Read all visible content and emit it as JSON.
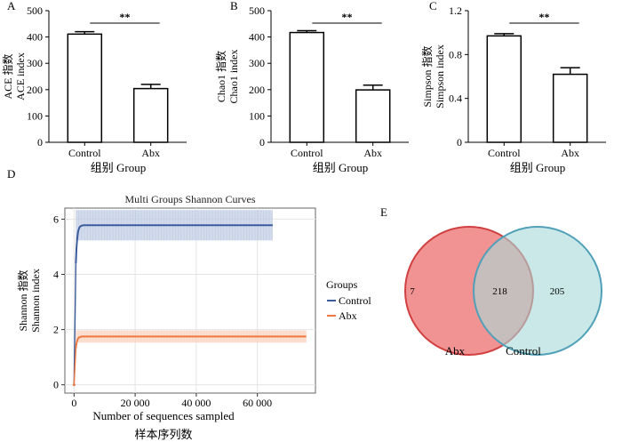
{
  "panels": {
    "a": {
      "letter": "A"
    },
    "b": {
      "letter": "B"
    },
    "c": {
      "letter": "C"
    },
    "d": {
      "letter": "D"
    },
    "e": {
      "letter": "E"
    }
  },
  "chart_data": [
    {
      "id": "a",
      "type": "bar",
      "categories": [
        "Control",
        "Abx"
      ],
      "values": [
        411,
        204
      ],
      "errors": [
        9,
        16
      ],
      "ylim": [
        0,
        500
      ],
      "yticks": [
        0,
        100,
        200,
        300,
        400,
        500
      ],
      "ylabel_cn": "ACE 指数",
      "ylabel_en": "ACE index",
      "xlabel": "组别 Group",
      "significance": "**"
    },
    {
      "id": "b",
      "type": "bar",
      "categories": [
        "Control",
        "Abx"
      ],
      "values": [
        417,
        199
      ],
      "errors": [
        7,
        18
      ],
      "ylim": [
        0,
        500
      ],
      "yticks": [
        0,
        100,
        200,
        300,
        400,
        500
      ],
      "ylabel_cn": "Chao1 指数",
      "ylabel_en": "Chao1 index",
      "xlabel": "组别 Group",
      "significance": "**"
    },
    {
      "id": "c",
      "type": "bar",
      "categories": [
        "Control",
        "Abx"
      ],
      "values": [
        0.97,
        0.62
      ],
      "errors": [
        0.02,
        0.06
      ],
      "ylim": [
        0,
        1.2
      ],
      "yticks": [
        0,
        0.4,
        0.8,
        1.2
      ],
      "ytick_labels": [
        "0",
        "0.4",
        "0.8",
        "1.2"
      ],
      "ylabel_cn": "Simpson 指数",
      "ylabel_en": "Simpson index",
      "xlabel": "组别 Group",
      "significance": "**"
    },
    {
      "id": "d",
      "type": "line",
      "title": "Multi Groups Shannon Curves",
      "xlabel": "Number of sequences sampled",
      "xlabel_cn": "样本序列数",
      "ylabel_cn": "Shannon 指数",
      "ylabel_en": "Shannon index",
      "xlim": [
        -3000,
        79000
      ],
      "ylim": [
        -0.3,
        6.4
      ],
      "xticks": [
        0,
        20000,
        40000,
        60000
      ],
      "xtick_labels": [
        "0",
        "20 000",
        "40 000",
        "60 000"
      ],
      "yticks": [
        0,
        2,
        4,
        6
      ],
      "ytick_labels": [
        "0",
        "2",
        "4",
        "6"
      ],
      "grid": true,
      "legend_title": "Groups",
      "series": [
        {
          "name": "Control",
          "color": "#3b5b9a",
          "band_color": "#c3cfe6",
          "plateau": 5.78,
          "band": 0.55,
          "xmax": 65000
        },
        {
          "name": "Abx",
          "color": "#f07840",
          "band_color": "#f9d6c2",
          "plateau": 1.75,
          "band": 0.22,
          "xmax": 76000
        }
      ]
    },
    {
      "id": "e",
      "type": "venn",
      "sets": [
        {
          "name": "Abx",
          "only": "7",
          "color": "#f08080",
          "stroke": "#d04040"
        },
        {
          "name": "Control",
          "only": "205",
          "color": "#a8d8d8",
          "stroke": "#4fa0b8"
        }
      ],
      "overlap": "218"
    }
  ]
}
